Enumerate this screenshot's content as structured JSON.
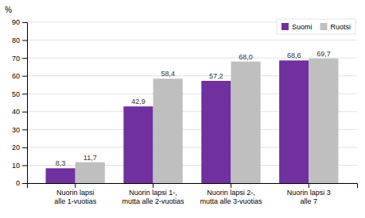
{
  "chart_data": {
    "type": "bar",
    "categories": [
      "Nuorin lapsi\nalle 1-vuotias",
      "Nuorin lapsi 1-,\nmutta alle 2-vuotias",
      "Nuorin lapsi 2-,\nmutta alle 3-vuotias",
      "Nuorin lapsi 3\nalle 7"
    ],
    "series": [
      {
        "name": "Suomi",
        "color": "#7030A0",
        "values": [
          8.3,
          42.9,
          57.2,
          68.6
        ],
        "value_labels": [
          "8,3",
          "42,9",
          "57,2",
          "68,6"
        ]
      },
      {
        "name": "Ruotsi",
        "color": "#BFBFBF",
        "values": [
          11.7,
          58.4,
          68.0,
          69.7
        ],
        "value_labels": [
          "11,7",
          "58,4",
          "68,0",
          "69,7"
        ]
      }
    ],
    "ylabel": "%",
    "ylim": [
      0,
      90
    ],
    "yticks": [
      0,
      10,
      20,
      30,
      40,
      50,
      60,
      70,
      80,
      90
    ],
    "grid": true,
    "legend": "top-right",
    "data_labels": true
  }
}
